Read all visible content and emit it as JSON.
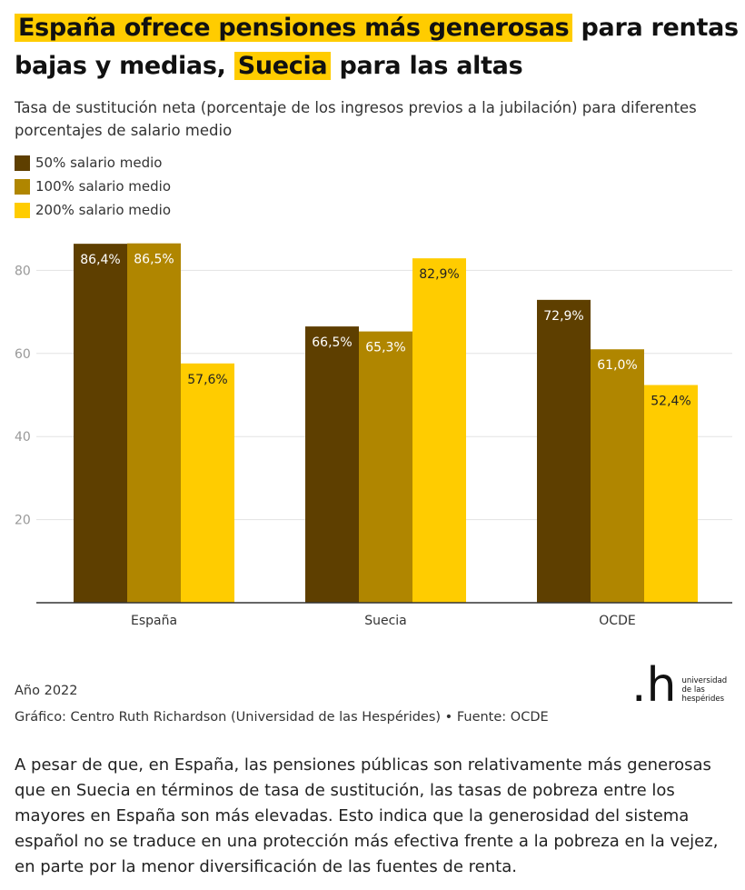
{
  "header": {
    "title_hl1": "España ofrece pensiones más generosas",
    "title_mid1": "para rentas bajas y medias,",
    "title_hl2": "Suecia",
    "title_end": "para las altas",
    "subtitle": "Tasa de sustitución neta (porcentaje de los ingresos previos a la jubilación) para diferentes porcentajes de salario medio"
  },
  "colors": {
    "highlight": "#ffcc00",
    "s50": "#5e3f00",
    "s100": "#b08600",
    "s200": "#ffcc00"
  },
  "chart_data": {
    "type": "bar",
    "categories": [
      "España",
      "Suecia",
      "OCDE"
    ],
    "series": [
      {
        "name": "50% salario medio",
        "values": [
          86.4,
          66.5,
          72.9
        ],
        "labels": [
          "86,4%",
          "66,5%",
          "72,9%"
        ],
        "color": "#5e3f00"
      },
      {
        "name": "100% salario medio",
        "values": [
          86.5,
          65.3,
          61.0
        ],
        "labels": [
          "86,5%",
          "65,3%",
          "61,0%"
        ],
        "color": "#b08600"
      },
      {
        "name": "200% salario medio",
        "values": [
          57.6,
          82.9,
          52.4
        ],
        "labels": [
          "57,6%",
          "82,9%",
          "52,4%"
        ],
        "color": "#ffcc00"
      }
    ],
    "yticks": [
      20,
      40,
      60,
      80
    ],
    "ylim": [
      0,
      89
    ],
    "grid": true,
    "legend_position": "top-left"
  },
  "footer": {
    "year": "Año 2022",
    "credit": "Gráfico: Centro Ruth Richardson (Universidad de las Hespérides) • Fuente: OCDE",
    "logo_mark": ".h",
    "logo_text": [
      "universidad",
      "de las",
      "hespérides"
    ]
  },
  "body_text": "A pesar de que, en España, las pensiones públicas son relativamente más generosas que en Suecia en términos de tasa de sustitución, las tasas de pobreza entre los mayores en España son más elevadas. Esto indica que la generosidad del sistema español no se traduce en una protección más efectiva frente a la pobreza en la vejez, en parte por la menor diversificación de las fuentes de renta."
}
